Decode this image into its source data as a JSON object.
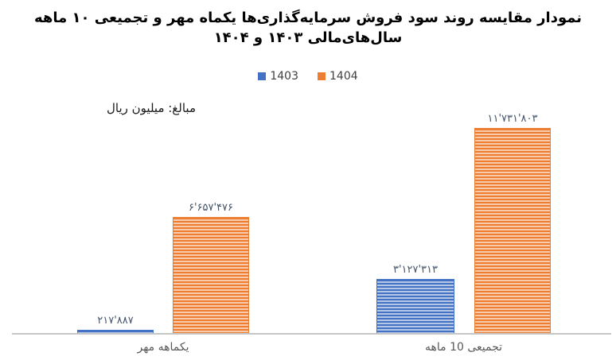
{
  "title": "نمودار مقایسه روند سود فروش سرمایه‌گذاری‌ها یکماه مهر و تجمیعی ۱۰ ماهه سال‌های‌مالی ۱۴۰۳ و ۱۴۰۴",
  "units_label": "مبالغ: میلیون ریال",
  "legend": {
    "items": [
      {
        "label": "1403",
        "color": "#4472C4"
      },
      {
        "label": "1404",
        "color": "#ED7D31"
      }
    ]
  },
  "chart_data": {
    "type": "bar",
    "title": "نمودار مقایسه روند سود فروش سرمایه‌گذاری‌ها یکماه مهر و تجمیعی ۱۰ ماهه سال‌های‌مالی ۱۴۰۳ و ۱۴۰۴",
    "categories": [
      "یکماهه مهر",
      "تجمیعی 10 ماهه"
    ],
    "series": [
      {
        "name": "1403",
        "color": "#4472C4",
        "stripe_light": "#B4C7E7",
        "values": [
          217887,
          3127313
        ],
        "value_labels": [
          "۲۱۷'۸۸۷",
          "۳'۱۲۷'۳۱۳"
        ]
      },
      {
        "name": "1404",
        "color": "#ED7D31",
        "stripe_light": "#F8CBAD",
        "values": [
          6657476,
          11731803
        ],
        "value_labels": [
          "۶'۶۵۷'۴۷۶",
          "۱۱'۷۳۱'۸۰۳"
        ]
      }
    ],
    "xlabel": "",
    "ylabel": "مبالغ: میلیون ریال",
    "ylim": [
      0,
      11731803
    ],
    "grid": false,
    "legend_position": "top-center",
    "axis_line_color": "#C6C6C6",
    "value_label_color": "#44546A",
    "category_label_color": "#595959",
    "title_color": "#000000"
  }
}
